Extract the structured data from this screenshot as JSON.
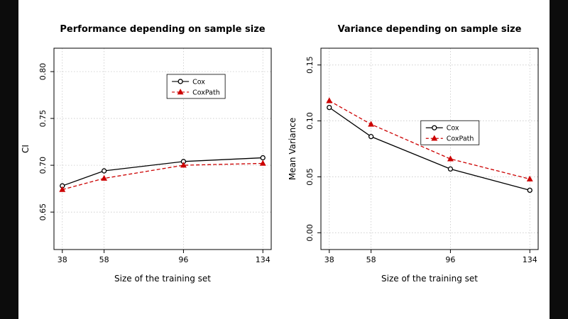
{
  "page": {
    "background": "#ffffff",
    "edge_bar_color": "#0c0c0c",
    "axis_color": "#000000",
    "grid_color": "#c8c8c8"
  },
  "chart_data": [
    {
      "type": "line",
      "title": "Performance depending on sample size",
      "xlabel": "Size of the training set",
      "ylabel": "CI",
      "x": [
        38,
        58,
        96,
        134
      ],
      "xlim": [
        34,
        138
      ],
      "ylim": [
        0.61,
        0.825
      ],
      "yticks": [
        0.65,
        0.7,
        0.75,
        0.8
      ],
      "grid": true,
      "legend": {
        "x": 0.52,
        "y": 0.13,
        "entries": [
          "Cox",
          "CoxPath"
        ]
      },
      "series": [
        {
          "name": "Cox",
          "color": "#000000",
          "line": "solid",
          "marker": "circle",
          "values": [
            0.678,
            0.694,
            0.704,
            0.708
          ]
        },
        {
          "name": "CoxPath",
          "color": "#cc0000",
          "line": "dashed",
          "marker": "triangle",
          "values": [
            0.674,
            0.686,
            0.7,
            0.702
          ]
        }
      ]
    },
    {
      "type": "line",
      "title": "Variance depending on sample size",
      "xlabel": "Size of the training set",
      "ylabel": "Mean Variance",
      "x": [
        38,
        58,
        96,
        134
      ],
      "xlim": [
        34,
        138
      ],
      "ylim": [
        -0.015,
        0.165
      ],
      "yticks": [
        0.0,
        0.05,
        0.1,
        0.15
      ],
      "grid": true,
      "legend": {
        "x": 0.46,
        "y": 0.36,
        "entries": [
          "Cox",
          "CoxPath"
        ]
      },
      "series": [
        {
          "name": "Cox",
          "color": "#000000",
          "line": "solid",
          "marker": "circle",
          "values": [
            0.112,
            0.086,
            0.057,
            0.038
          ]
        },
        {
          "name": "CoxPath",
          "color": "#cc0000",
          "line": "dashed",
          "marker": "triangle",
          "values": [
            0.118,
            0.097,
            0.066,
            0.048
          ]
        }
      ]
    }
  ]
}
